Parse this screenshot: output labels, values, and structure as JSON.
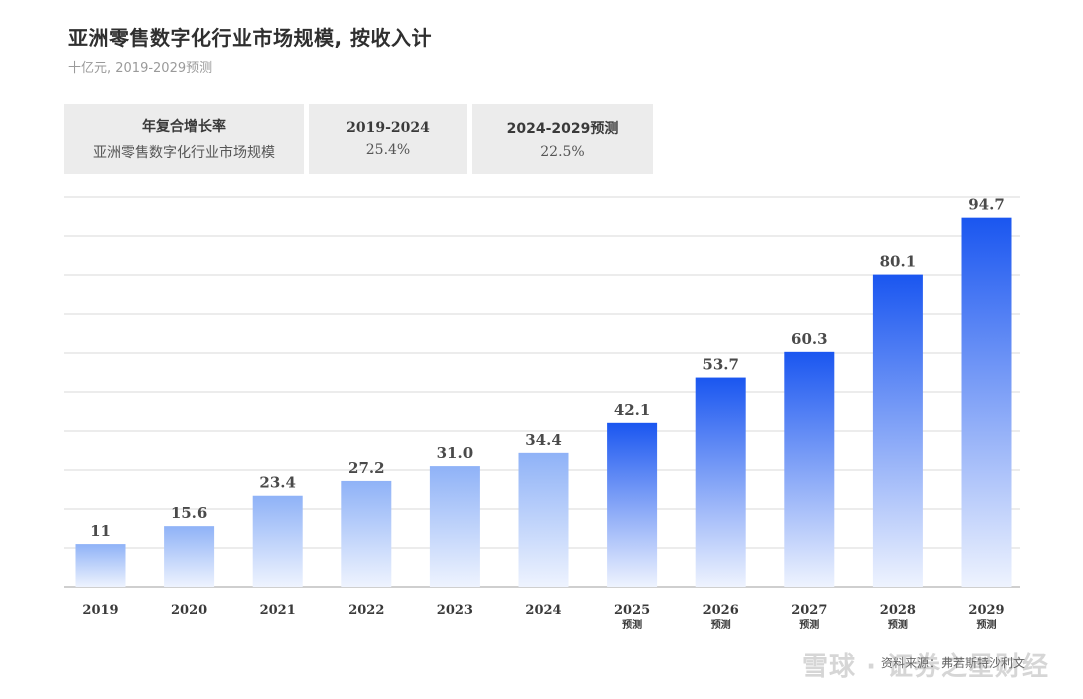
{
  "chart_data": {
    "type": "bar",
    "title": "亚洲零售数字化行业市场规模, 按收入计",
    "subtitle": "十亿元, 2019-2029预测",
    "categories": [
      "2019",
      "2020",
      "2021",
      "2022",
      "2023",
      "2024",
      "2025",
      "2026",
      "2027",
      "2028",
      "2029"
    ],
    "category_notes": [
      "",
      "",
      "",
      "",
      "",
      "",
      "预测",
      "预测",
      "预测",
      "预测",
      "预测"
    ],
    "values": [
      11,
      15.6,
      23.4,
      27.2,
      31.0,
      34.4,
      42.1,
      53.7,
      60.3,
      80.1,
      94.7
    ],
    "value_labels": [
      "11",
      "15.6",
      "23.4",
      "27.2",
      "31.0",
      "34.4",
      "42.1",
      "53.7",
      "60.3",
      "80.1",
      "94.7"
    ],
    "forecast_from_index": 6,
    "ylim": [
      0,
      100
    ],
    "grid": true,
    "xlabel": "",
    "ylabel": ""
  },
  "cagr_table": {
    "header": "年复合增长率",
    "row_label": "亚洲零售数字化行业市场规模",
    "periods": [
      {
        "label": "2019-2024",
        "value": "25.4%"
      },
      {
        "label": "2024-2029预测",
        "value": "22.5%"
      }
    ]
  },
  "colors": {
    "historic_top": "#8fb2f7",
    "forecast_top": "#1a56f0",
    "bar_bottom": "#eef3fe",
    "grid": "#d9d9d9",
    "axis": "#bfbfbf"
  },
  "footer": {
    "source": "资料来源：弗若斯特沙利文",
    "watermark": "雪球 · 证券之星财经"
  }
}
